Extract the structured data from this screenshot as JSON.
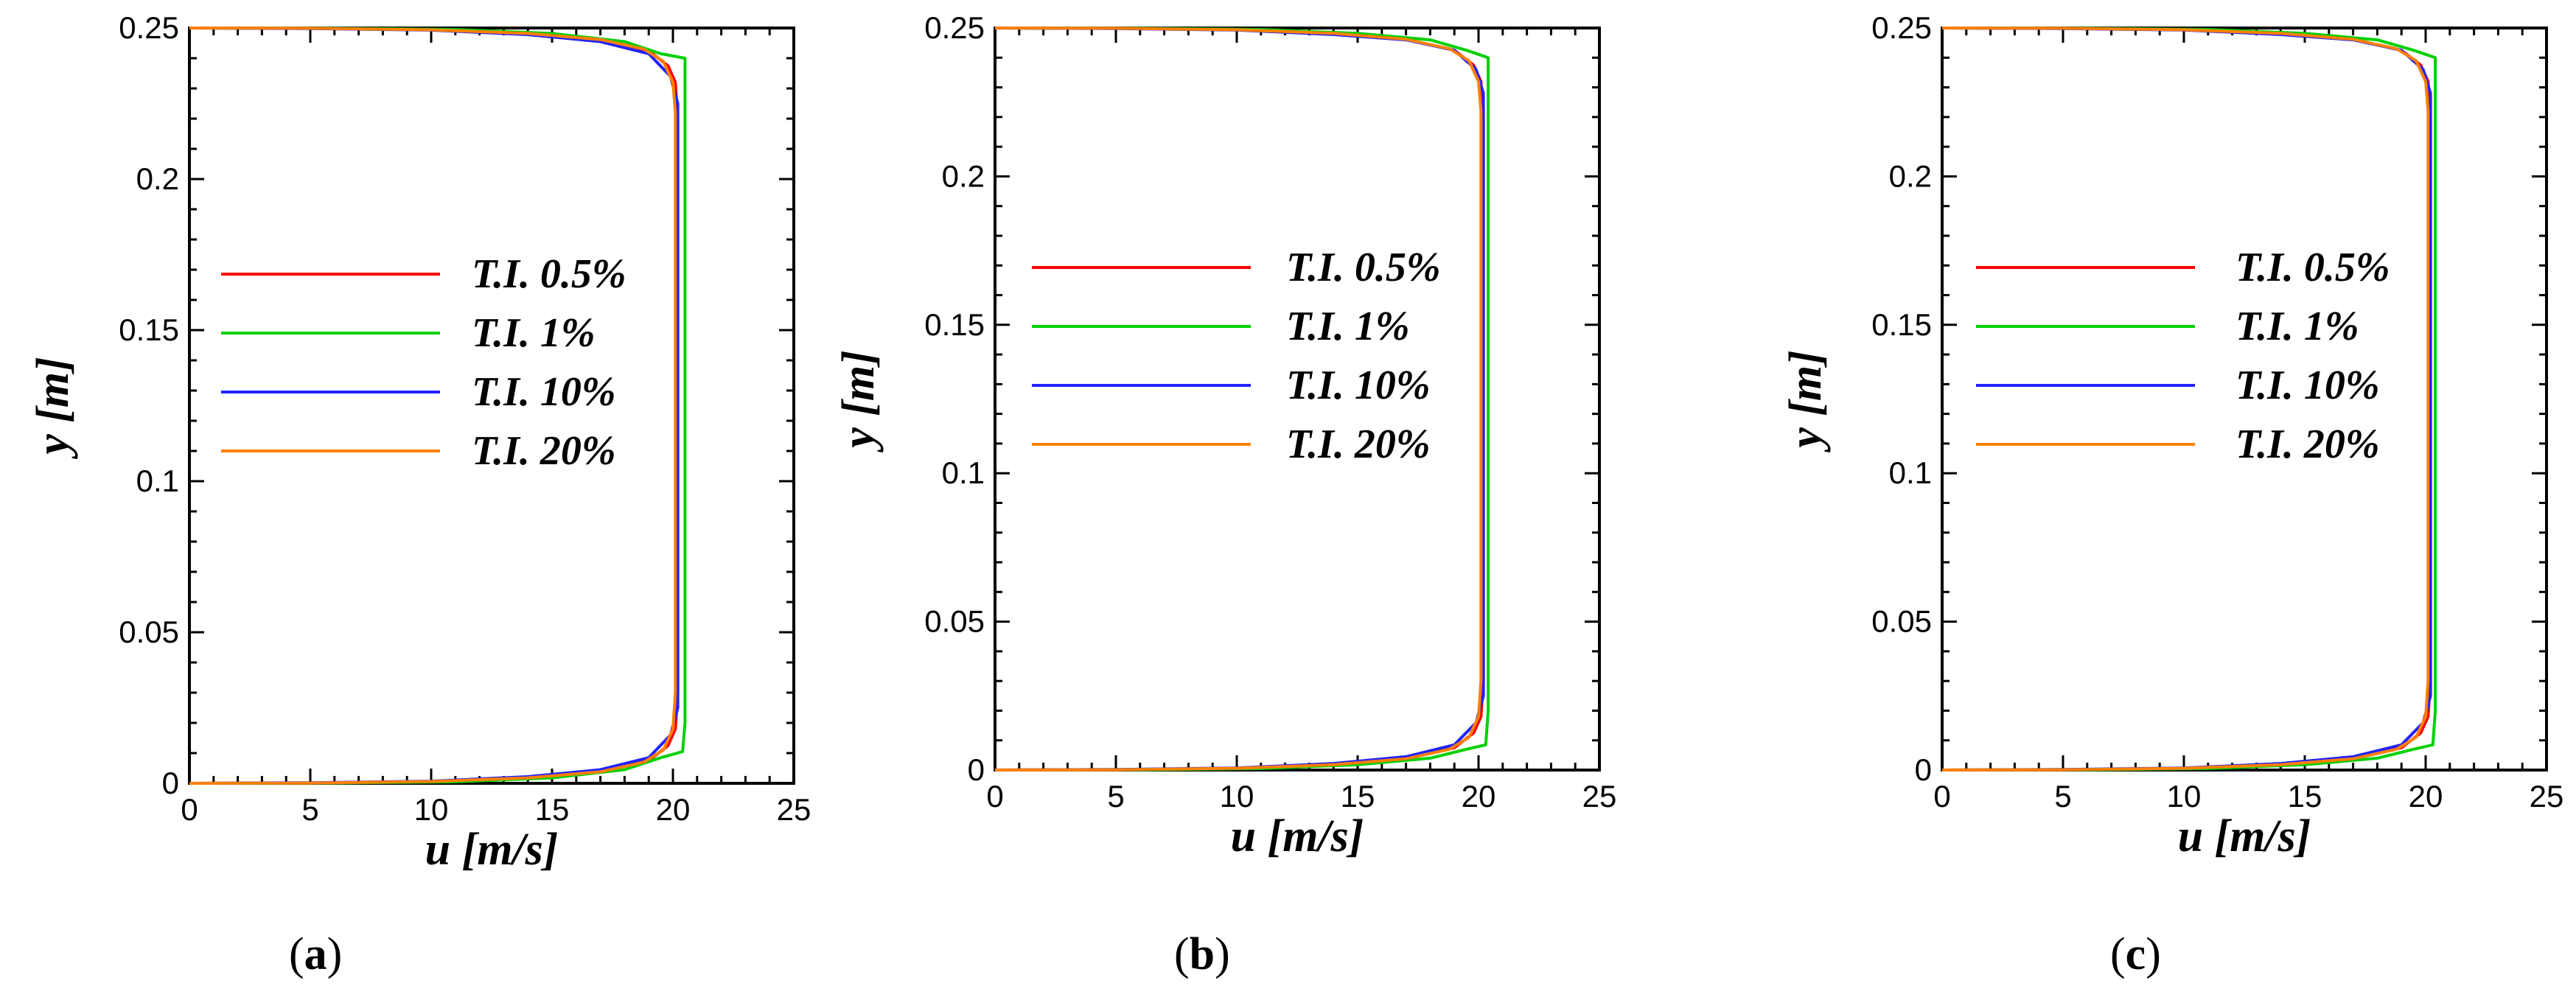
{
  "colors": {
    "axis": "#000000",
    "T.I. 0.5%": "#ff0000",
    "T.I. 1%": "#00d000",
    "T.I. 10%": "#2222ff",
    "T.I. 20%": "#ff8000"
  },
  "chart_data": [
    {
      "type": "line",
      "panel_label": "a",
      "xlabel": "u [m/s]",
      "ylabel": "y [m]",
      "xlim": [
        0,
        25
      ],
      "ylim": [
        0,
        0.25
      ],
      "xticks": [
        "0",
        "5",
        "10",
        "15",
        "20",
        "25"
      ],
      "yticks": [
        "0",
        "0.05",
        "0.1",
        "0.15",
        "0.2",
        "0.25"
      ],
      "legend_location": "center-left",
      "series": [
        {
          "name": "T.I. 0.5%",
          "points": [
            [
              0,
              0
            ],
            [
              5,
              0.0001
            ],
            [
              10,
              0.0006
            ],
            [
              14,
              0.0018
            ],
            [
              17,
              0.0038
            ],
            [
              19,
              0.0075
            ],
            [
              19.8,
              0.0125
            ],
            [
              20.1,
              0.018
            ],
            [
              20.2,
              0.03
            ],
            [
              20.2,
              0.05
            ],
            [
              20.2,
              0.1
            ],
            [
              20.2,
              0.15
            ],
            [
              20.2,
              0.2
            ],
            [
              20.2,
              0.22
            ],
            [
              20.1,
              0.232
            ],
            [
              19.8,
              0.2375
            ],
            [
              19,
              0.2425
            ],
            [
              17,
              0.2462
            ],
            [
              14,
              0.2482
            ],
            [
              10,
              0.2494
            ],
            [
              5,
              0.2499
            ],
            [
              0,
              0.25
            ]
          ]
        },
        {
          "name": "T.I. 1%",
          "points": [
            [
              0,
              0
            ],
            [
              6,
              0.0001
            ],
            [
              11,
              0.0005
            ],
            [
              15,
              0.0018
            ],
            [
              18,
              0.0045
            ],
            [
              19.5,
              0.0085
            ],
            [
              20.4,
              0.0105
            ],
            [
              20.5,
              0.02
            ],
            [
              20.5,
              0.1
            ],
            [
              20.5,
              0.15
            ],
            [
              20.5,
              0.2
            ],
            [
              20.5,
              0.24
            ],
            [
              19.5,
              0.2415
            ],
            [
              18,
              0.2455
            ],
            [
              15,
              0.2482
            ],
            [
              11,
              0.2495
            ],
            [
              6,
              0.2499
            ],
            [
              0,
              0.25
            ]
          ]
        },
        {
          "name": "T.I. 10%",
          "points": [
            [
              0,
              0
            ],
            [
              5,
              0.0002
            ],
            [
              10,
              0.0007
            ],
            [
              14,
              0.0022
            ],
            [
              17,
              0.0045
            ],
            [
              19,
              0.0085
            ],
            [
              19.9,
              0.016
            ],
            [
              20.2,
              0.025
            ],
            [
              20.2,
              0.04
            ],
            [
              20.2,
              0.1
            ],
            [
              20.2,
              0.2
            ],
            [
              20.2,
              0.21
            ],
            [
              20.2,
              0.225
            ],
            [
              19.9,
              0.234
            ],
            [
              19,
              0.2415
            ],
            [
              17,
              0.2455
            ],
            [
              14,
              0.2478
            ],
            [
              10,
              0.2493
            ],
            [
              5,
              0.2498
            ],
            [
              0,
              0.25
            ]
          ]
        },
        {
          "name": "T.I. 20%",
          "points": [
            [
              0,
              0
            ],
            [
              5,
              0.0001
            ],
            [
              10,
              0.0006
            ],
            [
              14,
              0.0018
            ],
            [
              17,
              0.0038
            ],
            [
              18.8,
              0.007
            ],
            [
              19.6,
              0.011
            ],
            [
              20,
              0.018
            ],
            [
              20.1,
              0.03
            ],
            [
              20.1,
              0.1
            ],
            [
              20.1,
              0.2
            ],
            [
              20.1,
              0.222
            ],
            [
              20,
              0.232
            ],
            [
              19.6,
              0.239
            ],
            [
              18.8,
              0.243
            ],
            [
              17,
              0.2462
            ],
            [
              14,
              0.2482
            ],
            [
              10,
              0.2494
            ],
            [
              5,
              0.2499
            ],
            [
              0,
              0.25
            ]
          ]
        }
      ]
    },
    {
      "type": "line",
      "panel_label": "b",
      "xlabel": "u [m/s]",
      "ylabel": "y [m]",
      "xlim": [
        0,
        25
      ],
      "ylim": [
        0,
        0.25
      ],
      "xticks": [
        "0",
        "5",
        "10",
        "15",
        "20",
        "25"
      ],
      "yticks": [
        "0",
        "0.05",
        "0.1",
        "0.15",
        "0.2",
        "0.25"
      ],
      "legend_location": "center-left",
      "series": [
        {
          "name": "T.I. 0.5%",
          "points": [
            [
              0,
              0
            ],
            [
              5,
              0.0001
            ],
            [
              10,
              0.0006
            ],
            [
              14,
              0.0018
            ],
            [
              17,
              0.0038
            ],
            [
              19,
              0.0075
            ],
            [
              19.8,
              0.0125
            ],
            [
              20.1,
              0.018
            ],
            [
              20.2,
              0.03
            ],
            [
              20.2,
              0.1
            ],
            [
              20.2,
              0.2
            ],
            [
              20.2,
              0.22
            ],
            [
              20.1,
              0.232
            ],
            [
              19.8,
              0.2375
            ],
            [
              19,
              0.2425
            ],
            [
              17,
              0.2462
            ],
            [
              14,
              0.2482
            ],
            [
              10,
              0.2494
            ],
            [
              5,
              0.2499
            ],
            [
              0,
              0.25
            ]
          ]
        },
        {
          "name": "T.I. 1%",
          "points": [
            [
              0,
              0
            ],
            [
              6,
              0.0001
            ],
            [
              11,
              0.0005
            ],
            [
              15,
              0.0018
            ],
            [
              18,
              0.004
            ],
            [
              19.5,
              0.007
            ],
            [
              20.3,
              0.0085
            ],
            [
              20.4,
              0.02
            ],
            [
              20.4,
              0.1
            ],
            [
              20.4,
              0.2
            ],
            [
              20.4,
              0.24
            ],
            [
              19.5,
              0.2425
            ],
            [
              18,
              0.246
            ],
            [
              15,
              0.2482
            ],
            [
              11,
              0.2495
            ],
            [
              6,
              0.2499
            ],
            [
              0,
              0.25
            ]
          ]
        },
        {
          "name": "T.I. 10%",
          "points": [
            [
              0,
              0
            ],
            [
              5,
              0.0002
            ],
            [
              10,
              0.0007
            ],
            [
              14,
              0.0022
            ],
            [
              17,
              0.0045
            ],
            [
              19,
              0.0085
            ],
            [
              19.9,
              0.016
            ],
            [
              20.2,
              0.025
            ],
            [
              20.2,
              0.035
            ],
            [
              20.2,
              0.1
            ],
            [
              20.2,
              0.2
            ],
            [
              20.2,
              0.215
            ],
            [
              20.2,
              0.228
            ],
            [
              19.9,
              0.236
            ],
            [
              19,
              0.2425
            ],
            [
              17,
              0.246
            ],
            [
              14,
              0.2478
            ],
            [
              10,
              0.2493
            ],
            [
              5,
              0.2498
            ],
            [
              0,
              0.25
            ]
          ]
        },
        {
          "name": "T.I. 20%",
          "points": [
            [
              0,
              0
            ],
            [
              5,
              0.0001
            ],
            [
              10,
              0.0006
            ],
            [
              14,
              0.0018
            ],
            [
              17,
              0.0038
            ],
            [
              18.8,
              0.007
            ],
            [
              19.6,
              0.011
            ],
            [
              20,
              0.018
            ],
            [
              20.1,
              0.03
            ],
            [
              20.1,
              0.1
            ],
            [
              20.1,
              0.2
            ],
            [
              20.1,
              0.222
            ],
            [
              20,
              0.232
            ],
            [
              19.6,
              0.239
            ],
            [
              18.8,
              0.243
            ],
            [
              17,
              0.2462
            ],
            [
              14,
              0.2482
            ],
            [
              10,
              0.2494
            ],
            [
              5,
              0.2499
            ],
            [
              0,
              0.25
            ]
          ]
        }
      ]
    },
    {
      "type": "line",
      "panel_label": "c",
      "xlabel": "u [m/s]",
      "ylabel": "y [m]",
      "xlim": [
        0,
        25
      ],
      "ylim": [
        0,
        0.25
      ],
      "xticks": [
        "0",
        "5",
        "10",
        "15",
        "20",
        "25"
      ],
      "yticks": [
        "0",
        "0.05",
        "0.1",
        "0.15",
        "0.2",
        "0.25"
      ],
      "legend_location": "center-left",
      "series": [
        {
          "name": "T.I. 0.5%",
          "points": [
            [
              0,
              0
            ],
            [
              5,
              0.0001
            ],
            [
              10,
              0.0006
            ],
            [
              14,
              0.0018
            ],
            [
              17,
              0.0038
            ],
            [
              19,
              0.0075
            ],
            [
              19.8,
              0.0125
            ],
            [
              20.1,
              0.018
            ],
            [
              20.2,
              0.03
            ],
            [
              20.2,
              0.1
            ],
            [
              20.2,
              0.2
            ],
            [
              20.2,
              0.22
            ],
            [
              20.1,
              0.232
            ],
            [
              19.8,
              0.2375
            ],
            [
              19,
              0.2425
            ],
            [
              17,
              0.2462
            ],
            [
              14,
              0.2482
            ],
            [
              10,
              0.2494
            ],
            [
              5,
              0.2499
            ],
            [
              0,
              0.25
            ]
          ]
        },
        {
          "name": "T.I. 1%",
          "points": [
            [
              0,
              0
            ],
            [
              6,
              0.0001
            ],
            [
              11,
              0.0005
            ],
            [
              15,
              0.0018
            ],
            [
              18,
              0.004
            ],
            [
              19.5,
              0.007
            ],
            [
              20.3,
              0.0085
            ],
            [
              20.4,
              0.02
            ],
            [
              20.4,
              0.1
            ],
            [
              20.4,
              0.2
            ],
            [
              20.4,
              0.24
            ],
            [
              19.5,
              0.2425
            ],
            [
              18,
              0.246
            ],
            [
              15,
              0.2482
            ],
            [
              11,
              0.2495
            ],
            [
              6,
              0.2499
            ],
            [
              0,
              0.25
            ]
          ]
        },
        {
          "name": "T.I. 10%",
          "points": [
            [
              0,
              0
            ],
            [
              5,
              0.0002
            ],
            [
              10,
              0.0007
            ],
            [
              14,
              0.0022
            ],
            [
              17,
              0.0045
            ],
            [
              19,
              0.0085
            ],
            [
              19.9,
              0.016
            ],
            [
              20.2,
              0.025
            ],
            [
              20.2,
              0.035
            ],
            [
              20.2,
              0.1
            ],
            [
              20.2,
              0.2
            ],
            [
              20.2,
              0.215
            ],
            [
              20.2,
              0.228
            ],
            [
              19.9,
              0.236
            ],
            [
              19,
              0.2425
            ],
            [
              17,
              0.246
            ],
            [
              14,
              0.2478
            ],
            [
              10,
              0.2493
            ],
            [
              5,
              0.2498
            ],
            [
              0,
              0.25
            ]
          ]
        },
        {
          "name": "T.I. 20%",
          "points": [
            [
              0,
              0
            ],
            [
              5,
              0.0001
            ],
            [
              10,
              0.0006
            ],
            [
              14,
              0.0018
            ],
            [
              17,
              0.0038
            ],
            [
              18.8,
              0.007
            ],
            [
              19.6,
              0.011
            ],
            [
              20,
              0.018
            ],
            [
              20.1,
              0.03
            ],
            [
              20.1,
              0.1
            ],
            [
              20.1,
              0.2
            ],
            [
              20.1,
              0.222
            ],
            [
              20,
              0.232
            ],
            [
              19.6,
              0.239
            ],
            [
              18.8,
              0.243
            ],
            [
              17,
              0.2462
            ],
            [
              14,
              0.2482
            ],
            [
              10,
              0.2494
            ],
            [
              5,
              0.2499
            ],
            [
              0,
              0.25
            ]
          ]
        }
      ]
    }
  ]
}
